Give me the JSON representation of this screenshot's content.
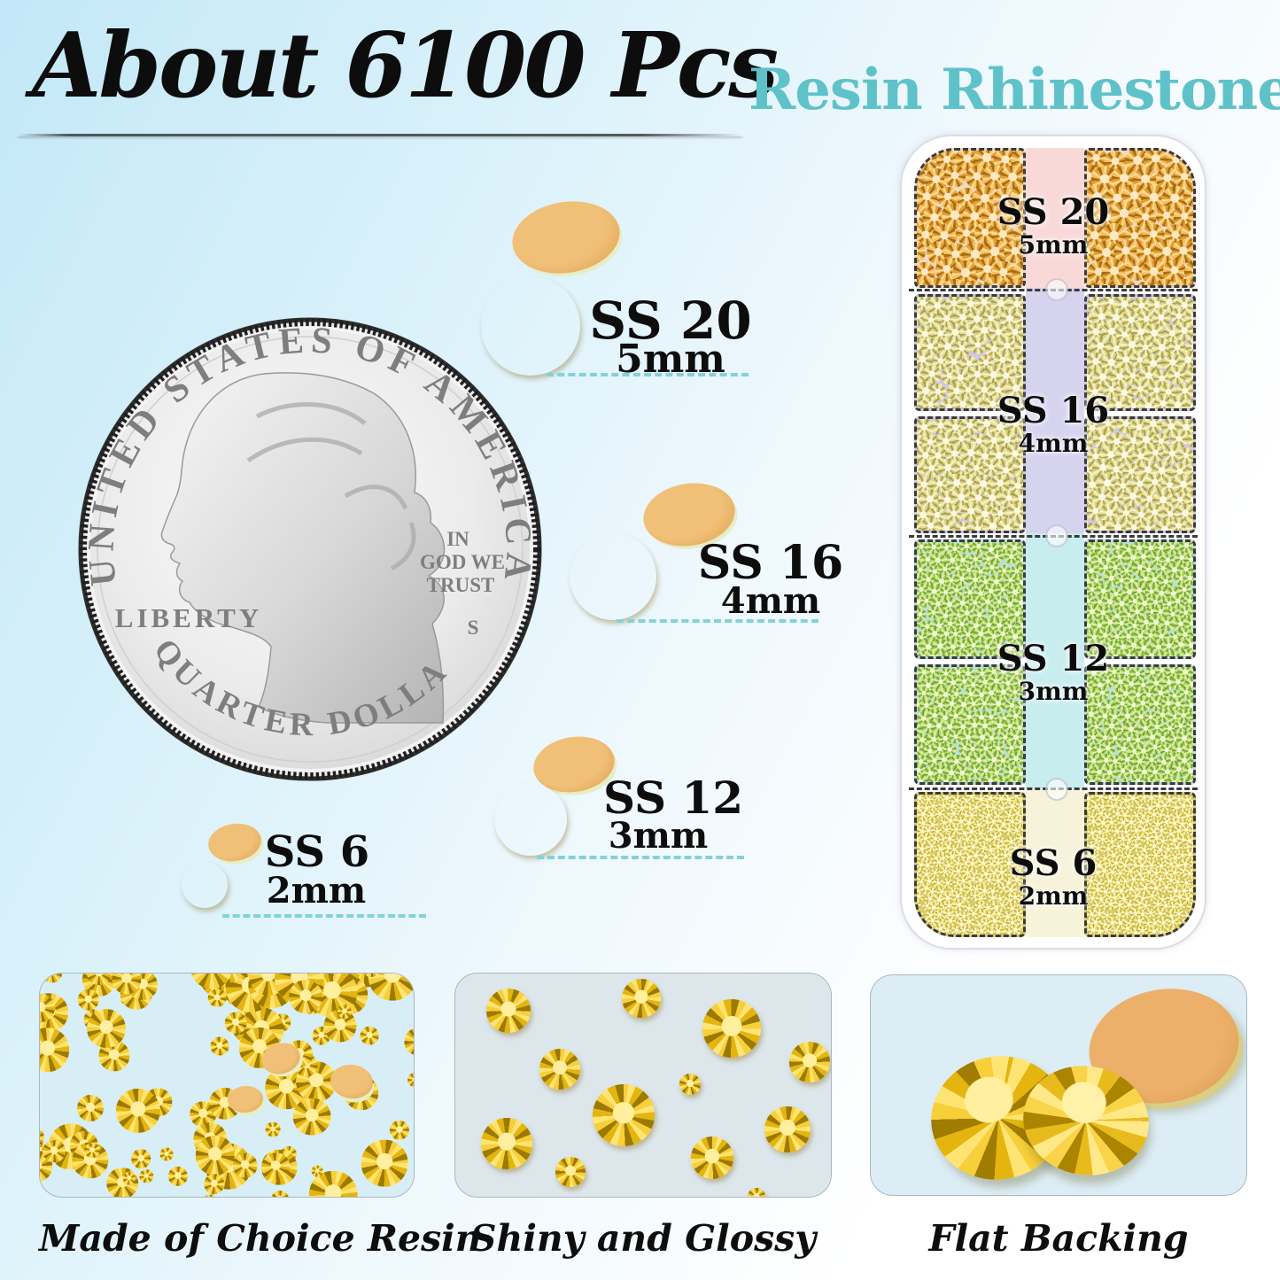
{
  "header": {
    "title": "About 6100 Pcs",
    "subtitle": "Resin Rhinestones"
  },
  "coin": {
    "top_text": "UNITED STATES OF AMERICA",
    "liberty": "LIBERTY",
    "motto": [
      "IN",
      "GOD WE",
      "TRUST"
    ],
    "mint_mark": "S",
    "bottom_text": "QUARTER DOLLAR"
  },
  "callouts": [
    {
      "label": "SS 20",
      "size": "5mm"
    },
    {
      "label": "SS 16",
      "size": "4mm"
    },
    {
      "label": "SS 12",
      "size": "3mm"
    },
    {
      "label": "SS 6",
      "size": "2mm"
    }
  ],
  "case": {
    "sections": [
      {
        "label": "SS 20",
        "size": "5mm",
        "stone_color_name": "topaz-orange"
      },
      {
        "label": "SS 16",
        "size": "4mm",
        "stone_color_name": "jonquil-yellow"
      },
      {
        "label": "SS 12",
        "size": "3mm",
        "stone_color_name": "peridot-green"
      },
      {
        "label": "SS 6",
        "size": "2mm",
        "stone_color_name": "citrine-yellow"
      }
    ]
  },
  "panels": [
    {
      "caption": "Made of Choice Resin"
    },
    {
      "caption": "Shiny and Glossy"
    },
    {
      "caption": "Flat Backing"
    }
  ],
  "colors": {
    "accent_teal": "#5fc2c9",
    "underline_teal": "#82d3d8",
    "gold": "#f2c53d",
    "flat_back_tan": "#e8b269",
    "title_black": "#0d0d0d"
  }
}
